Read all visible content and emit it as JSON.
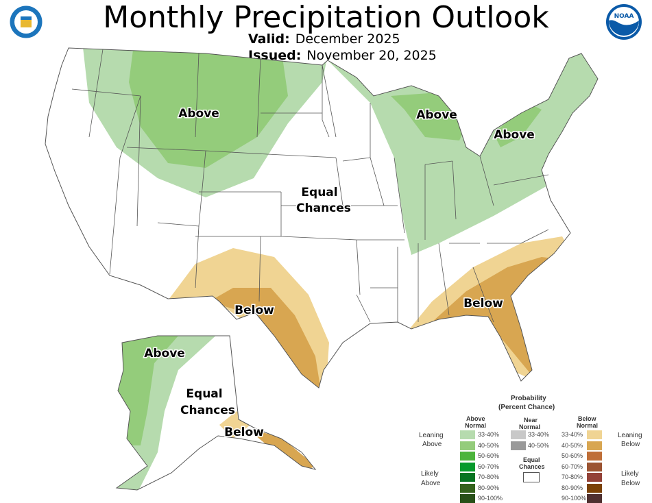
{
  "header": {
    "title": "Monthly Precipitation Outlook",
    "valid_label": "Valid:",
    "valid_value": "December 2025",
    "issued_label": "Issued:",
    "issued_value": "November 20, 2025"
  },
  "logos": {
    "left": "commerce-seal",
    "right": "NOAA"
  },
  "map_labels": {
    "nw_above": "Above",
    "mi_above": "Above",
    "ne_above": "Above",
    "equal_1": "Equal",
    "equal_2": "Chances",
    "sw_below": "Below",
    "se_below": "Below",
    "ak_above": "Above",
    "ak_equal_1": "Equal",
    "ak_equal_2": "Chances",
    "ak_below": "Below"
  },
  "legend": {
    "title_1": "Probability",
    "title_2": "(Percent Chance)",
    "above_header": [
      "Above",
      "Normal"
    ],
    "near_header": [
      "Near",
      "Normal"
    ],
    "below_header": [
      "Below",
      "Normal"
    ],
    "leaning_above": [
      "Leaning",
      "Above"
    ],
    "likely_above": [
      "Likely",
      "Above"
    ],
    "leaning_below": [
      "Leaning",
      "Below"
    ],
    "likely_below": [
      "Likely",
      "Below"
    ],
    "equal_chances": [
      "Equal",
      "Chances"
    ],
    "above": [
      {
        "range": "33-40%",
        "color": "#b6dbae"
      },
      {
        "range": "40-50%",
        "color": "#94cc7b"
      },
      {
        "range": "50-60%",
        "color": "#4cb43c"
      },
      {
        "range": "60-70%",
        "color": "#079a2c"
      },
      {
        "range": "70-80%",
        "color": "#077421"
      },
      {
        "range": "80-90%",
        "color": "#34621c"
      },
      {
        "range": "90-100%",
        "color": "#285018"
      }
    ],
    "near": [
      {
        "range": "33-40%",
        "color": "#c8c8c8"
      },
      {
        "range": "40-50%",
        "color": "#9a9a9a"
      }
    ],
    "below": [
      {
        "range": "33-40%",
        "color": "#f0d493"
      },
      {
        "range": "40-50%",
        "color": "#d8a651"
      },
      {
        "range": "50-60%",
        "color": "#bf6e37"
      },
      {
        "range": "60-70%",
        "color": "#9b5331"
      },
      {
        "range": "70-80%",
        "color": "#934137"
      },
      {
        "range": "80-90%",
        "color": "#7b4106"
      },
      {
        "range": "90-100%",
        "color": "#4f3030"
      }
    ]
  }
}
